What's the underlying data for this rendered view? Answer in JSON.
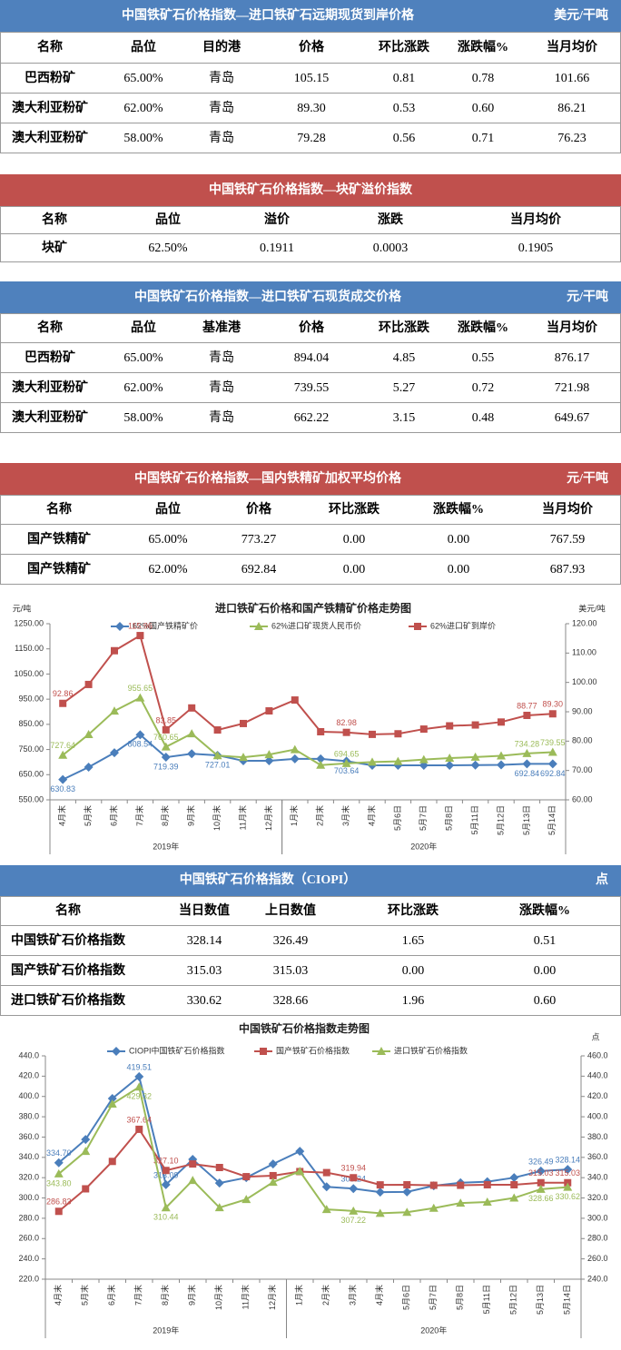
{
  "tables": [
    {
      "title": "中国铁矿石价格指数—进口铁矿石远期现货到岸价格",
      "unit": "美元/干吨",
      "color": "#4f81bd",
      "header": [
        "名称",
        "品位",
        "目的港",
        "价格",
        "环比涨跌",
        "涨跌幅%",
        "当月均价"
      ],
      "rows": [
        [
          "巴西粉矿",
          "65.00%",
          "青岛",
          "105.15",
          "0.81",
          "0.78",
          "101.66"
        ],
        [
          "澳大利亚粉矿",
          "62.00%",
          "青岛",
          "89.30",
          "0.53",
          "0.60",
          "86.21"
        ],
        [
          "澳大利亚粉矿",
          "58.00%",
          "青岛",
          "79.28",
          "0.56",
          "0.71",
          "76.23"
        ]
      ]
    },
    {
      "title": "中国铁矿石价格指数—块矿溢价指数",
      "color": "#c0504d",
      "header": [
        "名称",
        "品位",
        "溢价",
        "涨跌",
        "当月均价"
      ],
      "rows": [
        [
          "块矿",
          "62.50%",
          "0.1911",
          "0.0003",
          "0.1905"
        ]
      ]
    },
    {
      "title": "中国铁矿石价格指数—进口铁矿石现货成交价格",
      "unit": "元/干吨",
      "color": "#4f81bd",
      "header": [
        "名称",
        "品位",
        "基准港",
        "价格",
        "环比涨跌",
        "涨跌幅%",
        "当月均价"
      ],
      "rows": [
        [
          "巴西粉矿",
          "65.00%",
          "青岛",
          "894.04",
          "4.85",
          "0.55",
          "876.17"
        ],
        [
          "澳大利亚粉矿",
          "62.00%",
          "青岛",
          "739.55",
          "5.27",
          "0.72",
          "721.98"
        ],
        [
          "澳大利亚粉矿",
          "58.00%",
          "青岛",
          "662.22",
          "3.15",
          "0.48",
          "649.67"
        ]
      ]
    },
    {
      "title": "中国铁矿石价格指数—国内铁精矿加权平均价格",
      "unit": "元/干吨",
      "color": "#c0504d",
      "header": [
        "名称",
        "品位",
        "价格",
        "环比涨跌",
        "涨跌幅%",
        "当月均价"
      ],
      "rows": [
        [
          "国产铁精矿",
          "65.00%",
          "773.27",
          "0.00",
          "0.00",
          "767.59"
        ],
        [
          "国产铁精矿",
          "62.00%",
          "692.84",
          "0.00",
          "0.00",
          "687.93"
        ]
      ]
    },
    {
      "title": "中国铁矿石价格指数（CIOPI）",
      "unit": "点",
      "color": "#4f81bd",
      "header": [
        "名称",
        "当日数值",
        "上日数值",
        "环比涨跌",
        "涨跌幅%"
      ],
      "rows": [
        [
          "中国铁矿石价格指数",
          "328.14",
          "326.49",
          "1.65",
          "0.51"
        ],
        [
          "国产铁矿石价格指数",
          "315.03",
          "315.03",
          "0.00",
          "0.00"
        ],
        [
          "进口铁矿石价格指数",
          "330.62",
          "328.66",
          "1.96",
          "0.60"
        ]
      ]
    }
  ],
  "chart_data": [
    {
      "type": "line",
      "title": "进口铁矿石价格和国产铁精矿价格走势图",
      "y_label": "元/吨",
      "y2_label": "美元/吨",
      "categories": [
        "4月末",
        "5月末",
        "6月末",
        "7月末",
        "8月末",
        "9月末",
        "10月末",
        "11月末",
        "12月末",
        "1月末",
        "2月末",
        "3月末",
        "4月末",
        "5月6日",
        "5月7日",
        "5月8日",
        "5月11日",
        "5月12日",
        "5月13日",
        "5月14日"
      ],
      "groups": [
        {
          "label": "2019年",
          "count": 9
        },
        {
          "label": "2020年",
          "count": 11
        }
      ],
      "ylim": [
        550,
        1250
      ],
      "yticks": [
        {
          "value": 550,
          "label": "550.00"
        },
        {
          "value": 650,
          "label": "650.00"
        },
        {
          "value": 750,
          "label": "750.00"
        },
        {
          "value": 850,
          "label": "850.00"
        },
        {
          "value": 950,
          "label": "950.00"
        },
        {
          "value": 1050,
          "label": "1050.00"
        },
        {
          "value": 1150,
          "label": "1150.00"
        },
        {
          "value": 1250,
          "label": "1250.00"
        }
      ],
      "y2lim": [
        60,
        120
      ],
      "y2ticks": [
        {
          "value": 60,
          "label": "60.00"
        },
        {
          "value": 70,
          "label": "70.00"
        },
        {
          "value": 80,
          "label": "80.00"
        },
        {
          "value": 90,
          "label": "90.00"
        },
        {
          "value": 100,
          "label": "100.00"
        },
        {
          "value": 110,
          "label": "110.00"
        },
        {
          "value": 120,
          "label": "120.00"
        }
      ],
      "grid": false,
      "legend": "top",
      "series": [
        {
          "name": "62%国产铁精矿价",
          "color": "#4a7ebb",
          "marker": "diamond",
          "values": [
            630.83,
            680,
            737,
            808.54,
            719.39,
            733,
            727.01,
            705,
            705,
            713,
            713,
            703.64,
            687,
            687,
            687,
            687,
            688,
            689,
            692.84,
            692.84
          ],
          "value_labels": [
            "630.83",
            null,
            null,
            "808.54",
            "719.39",
            null,
            "727.01",
            null,
            null,
            null,
            null,
            "703.64",
            null,
            null,
            null,
            null,
            null,
            null,
            "692.84",
            "692.84"
          ]
        },
        {
          "name": "62%进口矿现货人民币价",
          "color": "#9bbb59",
          "marker": "triangle",
          "values": [
            727.64,
            810,
            903,
            955.65,
            760.65,
            813,
            726,
            719,
            730,
            750,
            688,
            694.65,
            700,
            703,
            710,
            716,
            720,
            725,
            734.28,
            739.55
          ],
          "value_labels": [
            "727.64",
            null,
            null,
            "955.65",
            "760.65",
            null,
            null,
            null,
            null,
            null,
            null,
            "694.65",
            null,
            null,
            null,
            null,
            null,
            null,
            "734.28",
            "739.55"
          ]
        },
        {
          "name": "62%进口矿到岸价",
          "color": "#c0504d",
          "marker": "square",
          "axis": "y2",
          "values": [
            92.86,
            99.3,
            110.8,
            115.96,
            83.85,
            91.3,
            83.8,
            86,
            90.3,
            94,
            83.2,
            82.98,
            82.3,
            82.5,
            84.1,
            85.2,
            85.5,
            86.5,
            88.77,
            89.3
          ],
          "value_labels": [
            "92.86",
            null,
            null,
            "115.96",
            "83.85",
            null,
            null,
            null,
            null,
            null,
            null,
            "82.98",
            null,
            null,
            null,
            null,
            null,
            null,
            "88.77",
            "89.30"
          ]
        }
      ]
    },
    {
      "type": "line",
      "title": "中国铁矿石价格指数走势图",
      "y2_label": "点",
      "categories": [
        "4月末",
        "5月末",
        "6月末",
        "7月末",
        "8月末",
        "9月末",
        "10月末",
        "11月末",
        "12月末",
        "1月末",
        "2月末",
        "3月末",
        "4月末",
        "5月6日",
        "5月7日",
        "5月8日",
        "5月11日",
        "5月12日",
        "5月13日",
        "5月14日"
      ],
      "groups": [
        {
          "label": "2019年",
          "count": 9
        },
        {
          "label": "2020年",
          "count": 11
        }
      ],
      "ylim": [
        220,
        440
      ],
      "yticks": [
        {
          "value": 220,
          "label": "220.0"
        },
        {
          "value": 240,
          "label": "240.0"
        },
        {
          "value": 260,
          "label": "260.0"
        },
        {
          "value": 280,
          "label": "280.0"
        },
        {
          "value": 300,
          "label": "300.0"
        },
        {
          "value": 320,
          "label": "320.0"
        },
        {
          "value": 340,
          "label": "340.0"
        },
        {
          "value": 360,
          "label": "360.0"
        },
        {
          "value": 380,
          "label": "380.0"
        },
        {
          "value": 400,
          "label": "400.0"
        },
        {
          "value": 420,
          "label": "420.0"
        },
        {
          "value": 440,
          "label": "440.0"
        }
      ],
      "y2lim": [
        240,
        460
      ],
      "y2ticks": [
        {
          "value": 240,
          "label": "240.0"
        },
        {
          "value": 260,
          "label": "260.0"
        },
        {
          "value": 280,
          "label": "280.0"
        },
        {
          "value": 300,
          "label": "300.0"
        },
        {
          "value": 320,
          "label": "320.0"
        },
        {
          "value": 340,
          "label": "340.0"
        },
        {
          "value": 360,
          "label": "360.0"
        },
        {
          "value": 380,
          "label": "380.0"
        },
        {
          "value": 400,
          "label": "400.0"
        },
        {
          "value": 420,
          "label": "420.0"
        },
        {
          "value": 440,
          "label": "440.0"
        },
        {
          "value": 460,
          "label": "460.0"
        }
      ],
      "grid": false,
      "legend": "top",
      "series": [
        {
          "name": "CIOPI中国铁矿石价格指数",
          "color": "#4a7ebb",
          "marker": "diamond",
          "values": [
            334.7,
            357.6,
            398,
            419.51,
            313.09,
            338,
            314.7,
            320,
            333.5,
            346,
            311,
            309.24,
            305.7,
            306,
            312,
            315,
            316,
            320,
            326.49,
            328.14
          ],
          "value_labels": [
            "334.70",
            null,
            null,
            "419.51",
            "313.09",
            null,
            null,
            null,
            null,
            null,
            null,
            "309.24",
            null,
            null,
            null,
            null,
            null,
            null,
            "326.49",
            "328.14"
          ]
        },
        {
          "name": "国产铁矿石价格指数",
          "color": "#c0504d",
          "marker": "square",
          "values": [
            286.83,
            309,
            336,
            367.64,
            327.1,
            333.5,
            330,
            321,
            322,
            326,
            325,
            319.94,
            312.9,
            313,
            312.5,
            312.5,
            313,
            313,
            315.03,
            315.03
          ],
          "value_labels": [
            "286.83",
            null,
            null,
            "367.64",
            "327.10",
            null,
            null,
            null,
            null,
            null,
            null,
            "319.94",
            null,
            null,
            null,
            null,
            null,
            null,
            "315.03",
            "315.03"
          ]
        },
        {
          "name": "进口铁矿石价格指数",
          "color": "#9bbb59",
          "marker": "triangle",
          "axis": "y2",
          "values": [
            343.8,
            366,
            412.6,
            429.32,
            310.44,
            337.4,
            310.5,
            318.6,
            335.6,
            346.3,
            308.7,
            307.22,
            305,
            306,
            310,
            315,
            316,
            320,
            328.66,
            330.62
          ],
          "value_labels": [
            "343.80",
            null,
            null,
            "429.32",
            "310.44",
            null,
            null,
            null,
            null,
            null,
            null,
            "307.22",
            null,
            null,
            null,
            null,
            null,
            null,
            "328.66",
            "330.62"
          ]
        }
      ]
    }
  ]
}
